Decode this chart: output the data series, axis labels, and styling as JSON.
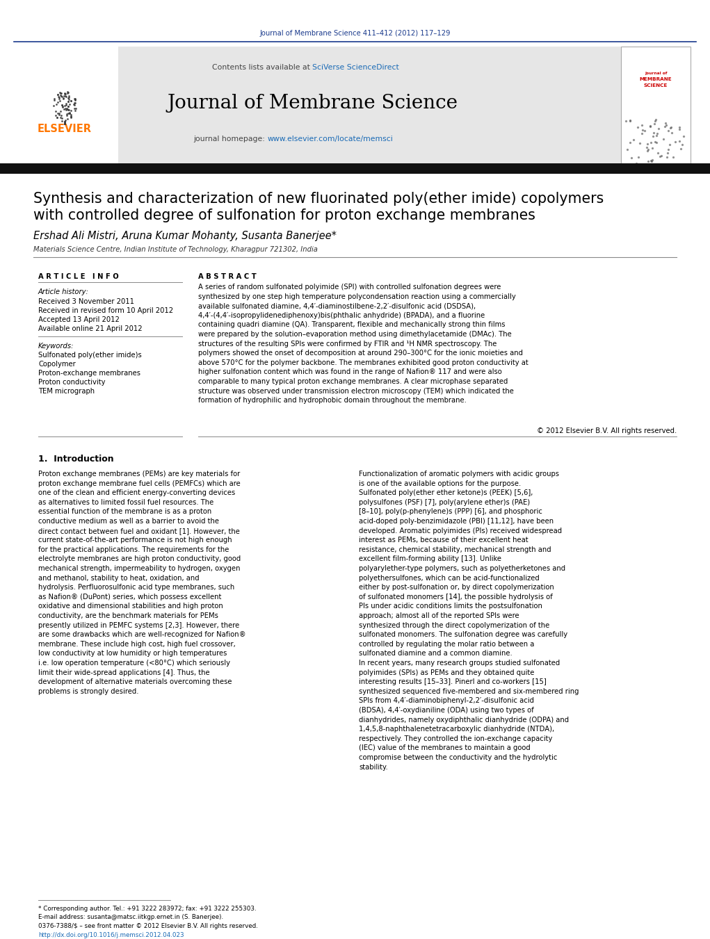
{
  "fig_width": 10.21,
  "fig_height": 13.51,
  "dpi": 100,
  "bg_color": "#ffffff",
  "journal_ref_text": "Journal of Membrane Science 411–412 (2012) 117–129",
  "journal_ref_color": "#1a3a8c",
  "journal_name": "Journal of Membrane Science",
  "contents_text": "Contents lists available at ",
  "sciverse_text": "SciVerse ScienceDirect",
  "sciverse_color": "#1a6ab5",
  "homepage_label": "journal homepage: ",
  "homepage_url": "www.elsevier.com/locate/memsci",
  "homepage_url_color": "#1a6ab5",
  "elsevier_color": "#ff7700",
  "article_title_line1": "Synthesis and characterization of new fluorinated poly(ether imide) copolymers",
  "article_title_line2": "with controlled degree of sulfonation for proton exchange membranes",
  "authors": "Ershad Ali Mistri, Aruna Kumar Mohanty, Susanta Banerjee",
  "affiliation": "Materials Science Centre, Indian Institute of Technology, Kharagpur 721302, India",
  "article_info_label": "A R T I C L E   I N F O",
  "abstract_label": "A B S T R A C T",
  "article_history_label": "Article history:",
  "received": "Received 3 November 2011",
  "received_revised": "Received in revised form 10 April 2012",
  "accepted": "Accepted 13 April 2012",
  "available": "Available online 21 April 2012",
  "keywords_label": "Keywords:",
  "keywords": [
    "Sulfonated poly(ether imide)s",
    "Copolymer",
    "Proton-exchange membranes",
    "Proton conductivity",
    "TEM micrograph"
  ],
  "abstract_text": "A series of random sulfonated polyimide (SPI) with controlled sulfonation degrees were synthesized by one step high temperature polycondensation reaction using a commercially available sulfonated diamine, 4,4′-diaminostilbene-2,2′-disulfonic  acid  (DSDSA),  4,4′-(4,4′-isopropylidenediphenoxy)bis(phthalic anhydride) (BPADA), and a fluorine containing quadri diamine (QA). Transparent, flexible and mechanically strong thin films were prepared by the solution–evaporation method using dimethylacetamide (DMAc). The structures of the resulting SPIs were confirmed by FTIR and ¹H NMR spectroscopy. The polymers showed the onset of decomposition at around 290–300°C for the ionic moieties and above 570°C for the polymer backbone. The membranes exhibited good proton conductivity at higher sulfonation content which was found in the range of Nafion® 117 and were also comparable to many typical proton exchange membranes. A clear microphase separated structure was observed under transmission electron microscopy (TEM) which indicated the formation of hydrophilic and hydrophobic domain throughout the membrane.",
  "copyright_text": "© 2012 Elsevier B.V. All rights reserved.",
  "intro_heading": "1.  Introduction",
  "intro_col1_text": "Proton exchange membranes (PEMs) are key materials for proton exchange membrane fuel cells (PEMFCs) which are one of the clean and efficient energy-converting devices as alternatives to limited fossil fuel resources. The essential function of the membrane is as a proton conductive medium as well as a barrier to avoid the direct contact between fuel and oxidant [1]. However, the current state-of-the-art performance is not high enough for the practical applications. The requirements for the electrolyte membranes are high proton conductivity, good mechanical strength, impermeability to hydrogen, oxygen and methanol, stability to heat, oxidation, and hydrolysis. Perfluorosulfonic acid type membranes, such as Nafion® (DuPont) series, which possess excellent oxidative and dimensional stabilities and high proton conductivity, are the benchmark materials for PEMs presently utilized in PEMFC systems [2,3]. However, there are some drawbacks which are well-recognized for Nafion® membrane. These include high cost, high fuel crossover, low conductivity at low humidity or high temperatures i.e. low operation temperature (<80°C) which seriously limit their wide-spread applications [4]. Thus, the development of alternative materials overcoming these problems is strongly desired.",
  "intro_col2_text": "Functionalization of aromatic polymers with acidic groups is one of the available options for the purpose. Sulfonated poly(ether ether ketone)s (PEEK) [5,6], polysulfones (PSF) [7], poly(arylene ether)s (PAE) [8–10], poly(p-phenylene)s (PPP) [6], and phosphoric acid-doped poly-benzimidazole (PBI) [11,12], have been developed. Aromatic polyimides (PIs) received widespread interest as PEMs, because of their excellent heat resistance, chemical stability, mechanical strength and excellent film-forming ability [13]. Unlike polyarylether-type polymers, such as polyetherketones and polyethersulfones, which can be acid-functionalized either by post-sulfonation or, by direct copolymerization of sulfonated monomers [14], the possible hydrolysis of PIs under acidic conditions limits the postsulfonation approach; almost all of the reported SPIs were synthesized through the direct copolymerization of the sulfonated monomers. The sulfonation degree was carefully controlled by regulating the molar ratio between a sulfonated diamine and a common diamine.\n   In recent years, many research groups studied sulfonated polyimides (SPIs) as PEMs and they obtained quite interesting results [15–33]. Pinerl and co-workers [15] synthesized sequenced five-membered and six-membered ring SPIs from 4,4′-diaminobiphenyl-2,2′-disulfonic acid (BDSA), 4,4′-oxydianiline (ODA) using two types of dianhydrides, namely oxydiphthalic dianhydride (ODPA) and 1,4,5,8-naphthalenetetracarboxylic dianhydride (NTDA), respectively. They controlled the ion-exchange capacity (IEC) value of the membranes to maintain a good compromise between the conductivity and the hydrolytic stability.",
  "footer_footnote": "* Corresponding author. Tel.: +91 3222 283972; fax: +91 3222 255303.",
  "footer_email": "E-mail address: susanta@matsc.iitkgp.ernet.in (S. Banerjee).",
  "footer_issn": "0376-7388/$ – see front matter © 2012 Elsevier B.V. All rights reserved.",
  "footer_doi": "http://dx.doi.org/10.1016/j.memsci.2012.04.023",
  "footer_doi_color": "#1a6ab5",
  "cover_title_color": "#cc0000"
}
